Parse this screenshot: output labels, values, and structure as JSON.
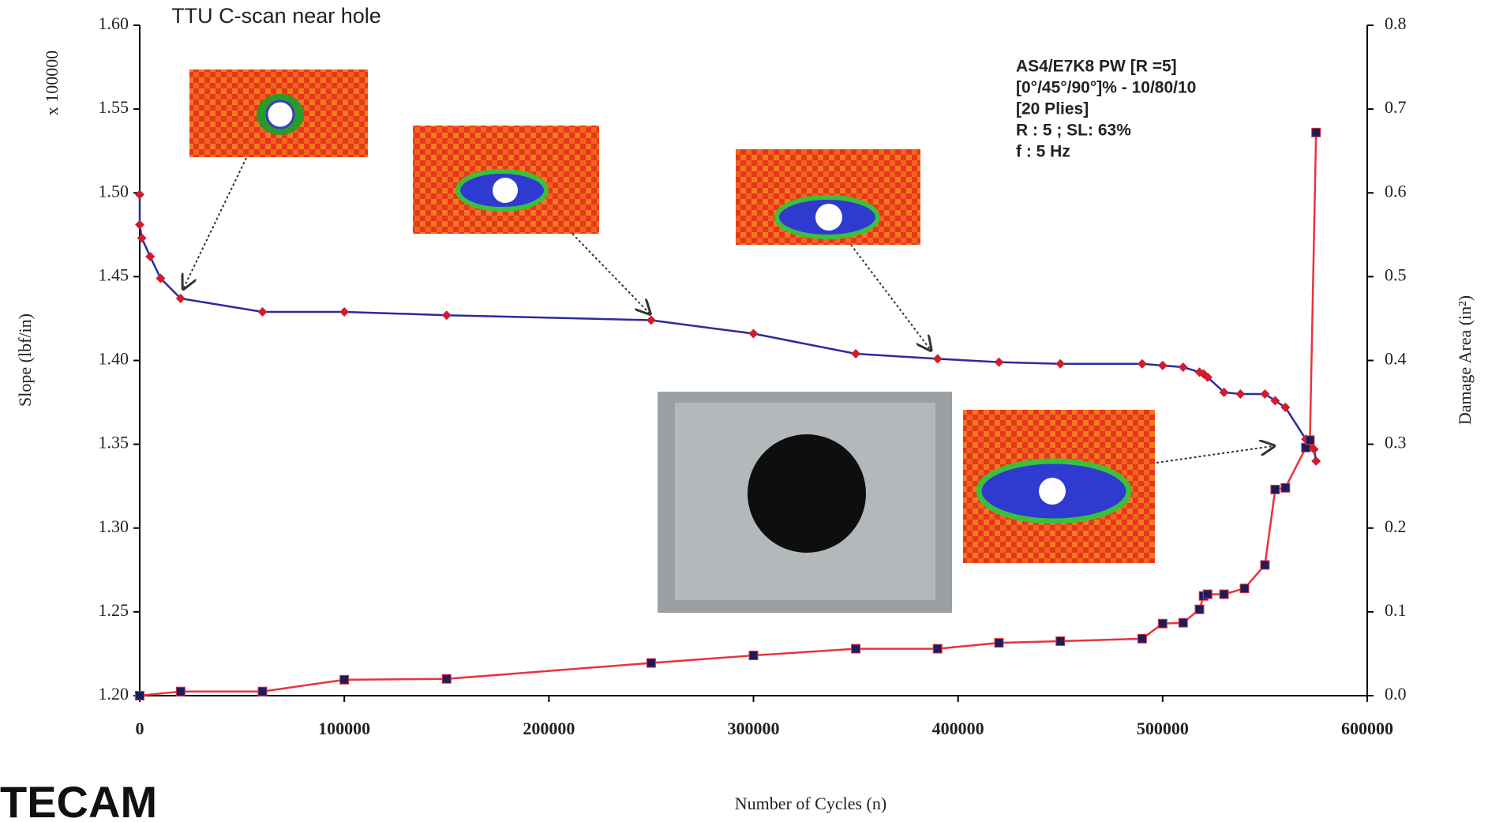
{
  "chart_data": {
    "type": "line",
    "x_label": "Number of Cycles (n)",
    "y_label": "Slope (lbf/in)",
    "y_multiplier": "x 100000",
    "y2_label": "Damage Area (in²)",
    "annotation_title": "TTU  C-scan near hole",
    "specimen_info": [
      "AS4/E7K8  PW [R =5]",
      "[0°/45°/90°]% - 10/80/10",
      "[20 Plies]",
      "R : 5 ; SL: 63%",
      "f : 5 Hz"
    ],
    "logo": "TECAM",
    "xlim": [
      0,
      600000
    ],
    "xticks": [
      0,
      100000,
      200000,
      300000,
      400000,
      500000,
      600000
    ],
    "ylim": [
      1.2,
      1.6
    ],
    "yticks": [
      {
        "value": 1.2,
        "label": "1.20"
      },
      1.25,
      {
        "value": 1.3,
        "label": "1.30"
      },
      1.35,
      {
        "value": 1.4,
        "label": "1.40"
      },
      1.45,
      {
        "value": 1.5,
        "label": "1.50"
      },
      1.55,
      {
        "value": 1.6,
        "label": "1.60"
      }
    ],
    "y2lim": [
      0,
      0.8
    ],
    "y2ticks": [
      {
        "value": 0,
        "label": "0.0"
      },
      0.1,
      0.2,
      0.3,
      0.4,
      0.5,
      0.6,
      0.7,
      0.8
    ],
    "series": [
      {
        "color": "#2a2aa0",
        "marker_color": "#d01c2c",
        "marker": "diamond",
        "axis": "y",
        "x": [
          0,
          0,
          1000,
          5100,
          10200,
          20000,
          60000,
          100000,
          150000,
          250000,
          300000,
          350000,
          390000,
          420000,
          450000,
          490000,
          500000,
          510000,
          518000,
          520000,
          522000,
          530000,
          538000,
          550000,
          555000,
          560000,
          570000,
          572000,
          574000,
          575000
        ],
        "values": [
          1.499,
          1.481,
          1.473,
          1.462,
          1.449,
          1.437,
          1.429,
          1.429,
          1.427,
          1.424,
          1.416,
          1.404,
          1.401,
          1.399,
          1.398,
          1.398,
          1.397,
          1.396,
          1.393,
          1.392,
          1.39,
          1.381,
          1.38,
          1.38,
          1.376,
          1.372,
          1.353,
          1.35,
          1.347,
          1.34
        ]
      },
      {
        "color": "#e8333c",
        "marker_color": "#1c1c5c",
        "marker": "square",
        "axis": "y2",
        "x": [
          0,
          20000,
          60000,
          100000,
          150000,
          250000,
          300000,
          350000,
          390000,
          420000,
          450000,
          490000,
          500000,
          510000,
          518000,
          520000,
          522000,
          530000,
          540000,
          550000,
          555000,
          560000,
          570000,
          572000,
          575000
        ],
        "values": [
          0,
          0.005,
          0.005,
          0.019,
          0.02,
          0.039,
          0.048,
          0.056,
          0.056,
          0.063,
          0.065,
          0.068,
          0.086,
          0.087,
          0.103,
          0.119,
          0.121,
          0.121,
          0.128,
          0.156,
          0.246,
          0.248,
          0.296,
          0.305,
          0.672
        ]
      }
    ]
  }
}
